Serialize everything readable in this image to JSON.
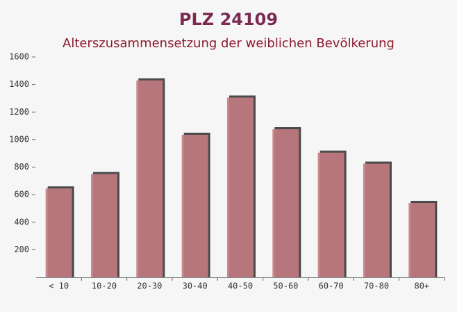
{
  "chart_data": {
    "type": "bar",
    "title": "PLZ 24109",
    "subtitle": "Alterszusammensetzung der weiblichen Bevölkerung",
    "categories": [
      "< 10",
      "10-20",
      "20-30",
      "30-40",
      "40-50",
      "50-60",
      "60-70",
      "70-80",
      "80+"
    ],
    "values": [
      645,
      750,
      1430,
      1035,
      1305,
      1075,
      905,
      825,
      540
    ],
    "color": "#c27b81",
    "ylim": [
      0,
      1600
    ],
    "yticks": [
      200,
      400,
      600,
      800,
      1000,
      1200,
      1400,
      1600
    ]
  }
}
